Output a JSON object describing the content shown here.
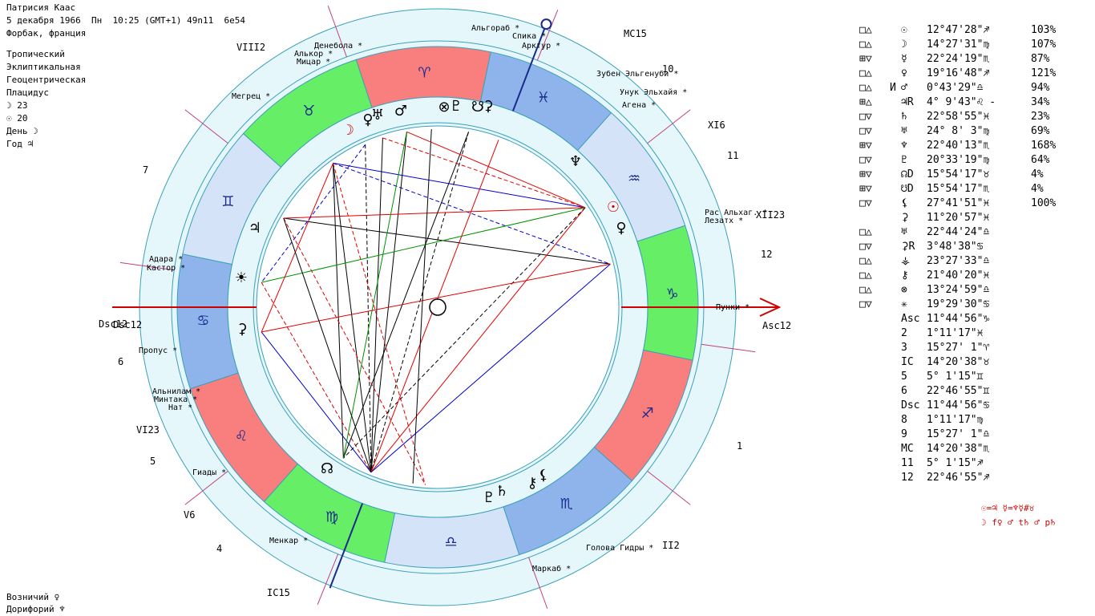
{
  "header": {
    "name": "Патрисия Каас",
    "date_line": "5 декабря 1966  Пн  10:25 (GMT+1) 49n11  6e54",
    "place": "Форбак, франция",
    "settings": [
      "Тропический",
      "Эклиптикальная",
      "Геоцентрическая",
      "Плацидус"
    ],
    "moon_line": "☽ 23",
    "sun_line": "☉ 20",
    "day_line": "День ☽",
    "year_line": "Год ♃"
  },
  "footer": {
    "ruler": "Возничий ♀",
    "doryphory": "Дорифорий ♆"
  },
  "axes": {
    "mc": "MC15",
    "ic": "IC15",
    "asc": "Asc12",
    "dsc": "Dsc12"
  },
  "house_labels": [
    "1",
    "II2",
    "XII23",
    "12",
    "11",
    "XI6",
    "10",
    "VIII2",
    "7",
    "Dsc12",
    "6",
    "VI23",
    "5",
    "V6",
    "4"
  ],
  "signs": [
    "♈",
    "♉",
    "♊",
    "♋",
    "♌",
    "♍",
    "♎",
    "♏",
    "♐",
    "♑",
    "♒",
    "♓"
  ],
  "stars": [
    "Альгораб",
    "Спика",
    "Арктур",
    "Денебола",
    "Алькор",
    "Мицар",
    "Зубен Эльгенуби",
    "Унук Эльхайя",
    "Агена",
    "Мегрец",
    "Рас Альхаг.",
    "Лезатх",
    "Пунки",
    "Адара",
    "Кастор",
    "Пропус",
    "Альнилам",
    "Минтака",
    "Нат",
    "Гиады",
    "Менкар",
    "Голова Гидры",
    "Маркаб"
  ],
  "planet_glyphs": [
    "☽",
    "♀",
    "♅",
    "♂",
    "⊗",
    "♇",
    "☋",
    "⚳",
    "♆",
    "☉",
    "♀",
    "♃",
    "☀",
    "⚳",
    "☊",
    "♇",
    "♄",
    "⚷",
    "⚸"
  ],
  "positions": [
    {
      "asp": "□△",
      "mark": "",
      "planet": "☉",
      "pos": "12°47'28\"♐",
      "pct": "103%"
    },
    {
      "asp": "□△",
      "mark": "",
      "planet": "☽",
      "pos": "14°27'31\"♍",
      "pct": "107%"
    },
    {
      "asp": "⊞▽",
      "mark": "",
      "planet": "☿",
      "pos": "22°24'19\"♏",
      "pct": "87%"
    },
    {
      "asp": "□△",
      "mark": "",
      "planet": "♀",
      "pos": "19°16'48\"♐",
      "pct": "121%"
    },
    {
      "asp": "□△",
      "mark": "И",
      "planet": "♂",
      "pos": "0°43'29\"♎",
      "pct": "94%"
    },
    {
      "asp": "⊞△",
      "mark": "",
      "planet": "♃R",
      "pos": "4° 9'43\"♌ -",
      "pct": "34%"
    },
    {
      "asp": "□▽",
      "mark": "",
      "planet": "♄",
      "pos": "22°58'55\"♓",
      "pct": "23%"
    },
    {
      "asp": "□▽",
      "mark": "",
      "planet": "♅",
      "pos": "24° 8' 3\"♍",
      "pct": "69%"
    },
    {
      "asp": "⊞▽",
      "mark": "",
      "planet": "♆",
      "pos": "22°40'13\"♏",
      "pct": "168%"
    },
    {
      "asp": "□▽",
      "mark": "",
      "planet": "♇",
      "pos": "20°33'19\"♍",
      "pct": "64%"
    },
    {
      "asp": "⊞▽",
      "mark": "",
      "planet": "☊D",
      "pos": "15°54'17\"♉",
      "pct": "4%"
    },
    {
      "asp": "⊞▽",
      "mark": "",
      "planet": "☋D",
      "pos": "15°54'17\"♏",
      "pct": "4%"
    },
    {
      "asp": "□▽",
      "mark": "",
      "planet": "⚸",
      "pos": "27°41'51\"♓",
      "pct": "100%"
    },
    {
      "asp": "",
      "mark": "",
      "planet": "⚳",
      "pos": "11°20'57\"♓",
      "pct": ""
    },
    {
      "asp": "□△",
      "mark": "",
      "planet": "♅",
      "pos": "22°44'24\"♎",
      "pct": ""
    },
    {
      "asp": "□▽",
      "mark": "",
      "planet": "⚳R",
      "pos": "3°48'38\"♋",
      "pct": ""
    },
    {
      "asp": "□△",
      "mark": "",
      "planet": "⚶",
      "pos": "23°27'33\"♎",
      "pct": ""
    },
    {
      "asp": "□△",
      "mark": "",
      "planet": "⚷",
      "pos": "21°40'20\"♓",
      "pct": ""
    },
    {
      "asp": "□△",
      "mark": "",
      "planet": "⊗",
      "pos": "13°24'59\"♎",
      "pct": ""
    },
    {
      "asp": "□▽",
      "mark": "",
      "planet": "✳",
      "pos": "19°29'30\"♋",
      "pct": ""
    },
    {
      "asp": "",
      "mark": "",
      "planet": "Asc",
      "pos": "11°44'56\"♑",
      "pct": ""
    },
    {
      "asp": "",
      "mark": "",
      "planet": "2",
      "pos": "1°11'17\"♓",
      "pct": ""
    },
    {
      "asp": "",
      "mark": "",
      "planet": "3",
      "pos": "15°27' 1\"♈",
      "pct": ""
    },
    {
      "asp": "",
      "mark": "",
      "planet": "IC",
      "pos": "14°20'38\"♉",
      "pct": ""
    },
    {
      "asp": "",
      "mark": "",
      "planet": "5",
      "pos": "5° 1'15\"♊",
      "pct": ""
    },
    {
      "asp": "",
      "mark": "",
      "planet": "6",
      "pos": "22°46'55\"♊",
      "pct": ""
    },
    {
      "asp": "",
      "mark": "",
      "planet": "Dsc",
      "pos": "11°44'56\"♋",
      "pct": ""
    },
    {
      "asp": "",
      "mark": "",
      "planet": "8",
      "pos": "1°11'17\"♍",
      "pct": ""
    },
    {
      "asp": "",
      "mark": "",
      "planet": "9",
      "pos": "15°27' 1\"♎",
      "pct": ""
    },
    {
      "asp": "",
      "mark": "",
      "planet": "MC",
      "pos": "14°20'38\"♏",
      "pct": ""
    },
    {
      "asp": "",
      "mark": "",
      "planet": "11",
      "pos": "5° 1'15\"♐",
      "pct": ""
    },
    {
      "asp": "",
      "mark": "",
      "planet": "12",
      "pos": "22°46'55\"♐",
      "pct": ""
    }
  ],
  "relations": {
    "line1": "☉=♃ ☿=♆☿#♉",
    "line2": "☽ f♀ ♂ t♄ ♂ p♄"
  },
  "colors": {
    "fire": "#f97f7f",
    "earth": "#66ef66",
    "air": "#d5e3f8",
    "water": "#8fb4ec",
    "ring": "#e6f7fb",
    "aspect_red": "#e00000",
    "aspect_blue": "#0000d0",
    "aspect_green": "#009000"
  }
}
